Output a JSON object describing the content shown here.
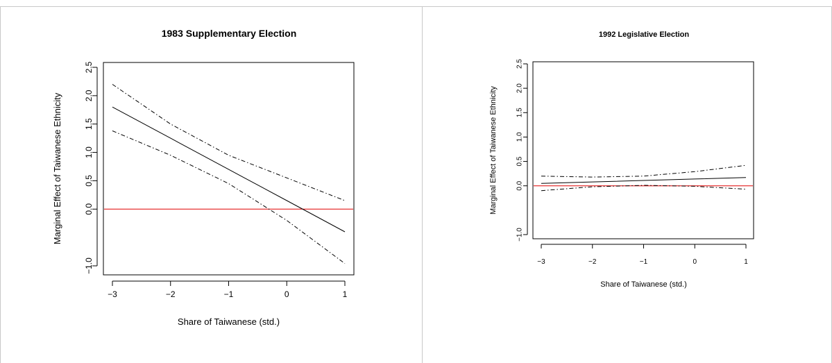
{
  "chart_data": [
    {
      "type": "line",
      "title": "1983 Supplementary Election",
      "xlabel": "Share of Taiwanese (std.)",
      "ylabel": "Marginal Effect of Taiwanese Ethnicity",
      "xlim": [
        -3,
        1
      ],
      "ylim": [
        -1.0,
        2.5
      ],
      "xticks": [
        -3,
        -2,
        -1,
        0,
        1
      ],
      "xtick_labels": [
        "−3",
        "−2",
        "−1",
        "0",
        "1"
      ],
      "yticks": [
        -1.0,
        0.0,
        0.5,
        1.0,
        1.5,
        2.0,
        2.5
      ],
      "ytick_labels": [
        "−1.0",
        "0.0",
        "0.5",
        "1.0",
        "1.5",
        "2.0",
        "2.5"
      ],
      "reference_line": {
        "y": 0,
        "color": "#e00000"
      },
      "series": [
        {
          "role": "estimate",
          "style": "solid",
          "x": [
            -3,
            -2,
            -1,
            0,
            1
          ],
          "y": [
            1.8,
            1.25,
            0.7,
            0.15,
            -0.4
          ]
        },
        {
          "role": "upper-ci",
          "style": "dotdash",
          "x": [
            -3,
            -2,
            -1,
            0,
            1
          ],
          "y": [
            2.2,
            1.5,
            0.95,
            0.55,
            0.15
          ]
        },
        {
          "role": "lower-ci",
          "style": "dotdash",
          "x": [
            -3,
            -2,
            -1,
            0,
            1
          ],
          "y": [
            1.38,
            0.95,
            0.45,
            -0.2,
            -0.96
          ]
        }
      ]
    },
    {
      "type": "line",
      "title": "1992 Legislative Election",
      "xlabel": "Share of Taiwanese (std.)",
      "ylabel": "Marginal Effect of Taiwanese Ethnicity",
      "xlim": [
        -3,
        1
      ],
      "ylim": [
        -1.0,
        2.5
      ],
      "xticks": [
        -3,
        -2,
        -1,
        0,
        1
      ],
      "xtick_labels": [
        "−3",
        "−2",
        "−1",
        "0",
        "1"
      ],
      "yticks": [
        -1.0,
        0.0,
        0.5,
        1.0,
        1.5,
        2.0,
        2.5
      ],
      "ytick_labels": [
        "−1.0",
        "0.0",
        "0.5",
        "1.0",
        "1.5",
        "2.0",
        "2.5"
      ],
      "reference_line": {
        "y": 0,
        "color": "#e00000"
      },
      "series": [
        {
          "role": "estimate",
          "style": "solid",
          "x": [
            -3,
            -2,
            -1,
            0,
            1
          ],
          "y": [
            0.05,
            0.08,
            0.11,
            0.14,
            0.17
          ]
        },
        {
          "role": "upper-ci",
          "style": "dotdash",
          "x": [
            -3,
            -2,
            -1,
            0,
            1
          ],
          "y": [
            0.2,
            0.18,
            0.2,
            0.29,
            0.42
          ]
        },
        {
          "role": "lower-ci",
          "style": "dotdash",
          "x": [
            -3,
            -2,
            -1,
            0,
            1
          ],
          "y": [
            -0.1,
            -0.02,
            0.01,
            -0.01,
            -0.07
          ]
        }
      ]
    }
  ]
}
